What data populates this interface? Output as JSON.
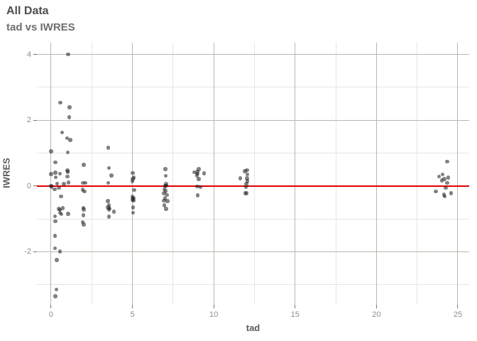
{
  "chart_data": {
    "type": "scatter",
    "title": "All Data",
    "subtitle": "tad vs IWRES",
    "xlabel": "tad",
    "ylabel": "IWRES",
    "xlim": [
      -0.87,
      25.7
    ],
    "ylim": [
      -3.61,
      4.36
    ],
    "x_ticks": [
      0,
      5,
      10,
      15,
      20,
      25
    ],
    "y_ticks": [
      -2,
      0,
      2,
      4
    ],
    "x_minor": [
      2.5,
      7.5,
      12.5,
      17.5,
      22.5
    ],
    "y_minor": [
      -3,
      -1,
      1,
      3
    ],
    "grid": true,
    "legend": "none",
    "reference_line": {
      "y": 0
    },
    "points": [
      [
        1.05,
        4.0
      ],
      [
        0.57,
        2.54
      ],
      [
        1.13,
        2.39
      ],
      [
        1.12,
        2.09
      ],
      [
        0.67,
        1.63
      ],
      [
        0.99,
        1.45
      ],
      [
        1.19,
        1.4
      ],
      [
        0.0,
        1.06
      ],
      [
        1.02,
        1.02
      ],
      [
        3.52,
        1.16
      ],
      [
        0.26,
        0.72
      ],
      [
        2.02,
        0.64
      ],
      [
        0.27,
        0.41
      ],
      [
        0.0,
        0.36
      ],
      [
        0.54,
        0.37
      ],
      [
        1.0,
        0.47
      ],
      [
        1.03,
        0.43
      ],
      [
        0.29,
        0.27
      ],
      [
        1.0,
        0.29
      ],
      [
        1.08,
        0.11
      ],
      [
        0.79,
        0.06
      ],
      [
        0.38,
        0.07
      ],
      [
        0.0,
        0.01
      ],
      [
        0.03,
        -0.02
      ],
      [
        0.22,
        -0.1
      ],
      [
        0.48,
        -0.06
      ],
      [
        0.61,
        -0.32
      ],
      [
        0.73,
        -0.67
      ],
      [
        0.49,
        -0.69
      ],
      [
        0.54,
        -0.73
      ],
      [
        0.54,
        -0.81
      ],
      [
        0.64,
        -0.86
      ],
      [
        0.25,
        -0.92
      ],
      [
        0.27,
        -1.07
      ],
      [
        1.05,
        -0.84
      ],
      [
        0.25,
        -1.51
      ],
      [
        0.25,
        -1.89
      ],
      [
        0.55,
        -1.99
      ],
      [
        0.35,
        -2.25
      ],
      [
        0.34,
        -3.15
      ],
      [
        0.27,
        -3.35
      ],
      [
        1.96,
        0.09
      ],
      [
        2.11,
        0.09
      ],
      [
        1.95,
        -0.11
      ],
      [
        2.05,
        -0.17
      ],
      [
        1.99,
        -0.66
      ],
      [
        2.02,
        -0.72
      ],
      [
        1.99,
        -0.89
      ],
      [
        1.95,
        -1.09
      ],
      [
        2.02,
        -1.17
      ],
      [
        3.55,
        0.55
      ],
      [
        3.71,
        0.32
      ],
      [
        3.52,
        0.09
      ],
      [
        3.5,
        -0.46
      ],
      [
        3.55,
        -0.59
      ],
      [
        3.49,
        -0.65
      ],
      [
        3.61,
        -0.68
      ],
      [
        3.55,
        -0.72
      ],
      [
        3.87,
        -0.78
      ],
      [
        3.56,
        -0.93
      ],
      [
        5.02,
        0.4
      ],
      [
        5.09,
        0.26
      ],
      [
        5.02,
        0.21
      ],
      [
        4.99,
        0.14
      ],
      [
        5.1,
        -0.12
      ],
      [
        5.0,
        -0.33
      ],
      [
        5.06,
        -0.36
      ],
      [
        5.02,
        -0.41
      ],
      [
        5.07,
        -0.44
      ],
      [
        5.05,
        -0.65
      ],
      [
        5.05,
        -0.81
      ],
      [
        7.02,
        0.51
      ],
      [
        7.05,
        0.31
      ],
      [
        7.07,
        0.06
      ],
      [
        7.0,
        0.0
      ],
      [
        7.08,
        0.01
      ],
      [
        6.97,
        -0.1
      ],
      [
        7.05,
        -0.15
      ],
      [
        6.94,
        -0.22
      ],
      [
        7.14,
        -0.27
      ],
      [
        7.01,
        -0.37
      ],
      [
        6.95,
        -0.45
      ],
      [
        7.16,
        -0.46
      ],
      [
        6.97,
        -0.59
      ],
      [
        7.08,
        -0.69
      ],
      [
        9.07,
        0.52
      ],
      [
        8.8,
        0.42
      ],
      [
        8.99,
        0.44
      ],
      [
        9.0,
        0.38
      ],
      [
        8.97,
        0.32
      ],
      [
        9.41,
        0.39
      ],
      [
        9.07,
        0.21
      ],
      [
        8.99,
        -0.01
      ],
      [
        9.18,
        -0.04
      ],
      [
        9.02,
        -0.28
      ],
      [
        12.04,
        0.48
      ],
      [
        11.92,
        0.45
      ],
      [
        12.07,
        0.35
      ],
      [
        11.62,
        0.24
      ],
      [
        12.04,
        0.24
      ],
      [
        12.06,
        0.15
      ],
      [
        12.01,
        0.06
      ],
      [
        11.98,
        -0.03
      ],
      [
        11.94,
        -0.22
      ],
      [
        12.03,
        -0.22
      ],
      [
        24.35,
        0.74
      ],
      [
        23.84,
        0.29
      ],
      [
        24.06,
        0.35
      ],
      [
        24.42,
        0.26
      ],
      [
        24.02,
        0.17
      ],
      [
        24.17,
        0.21
      ],
      [
        24.35,
        0.09
      ],
      [
        24.26,
        -0.06
      ],
      [
        23.66,
        -0.16
      ],
      [
        24.15,
        -0.26
      ],
      [
        24.19,
        -0.32
      ],
      [
        24.59,
        -0.22
      ]
    ],
    "colors": {
      "background": "#ffffff",
      "grid_major": "#b8b8af",
      "grid_minor": "#e5e5de",
      "reference_line": "#e10000",
      "point": "rgba(25,25,25,0.55)",
      "tick_mark": "#777777",
      "tick_label": "#8d8d8d",
      "title": "#4d4d4d",
      "subtitle": "#6e6e6e",
      "axis_title": "#5a5a5a"
    }
  }
}
